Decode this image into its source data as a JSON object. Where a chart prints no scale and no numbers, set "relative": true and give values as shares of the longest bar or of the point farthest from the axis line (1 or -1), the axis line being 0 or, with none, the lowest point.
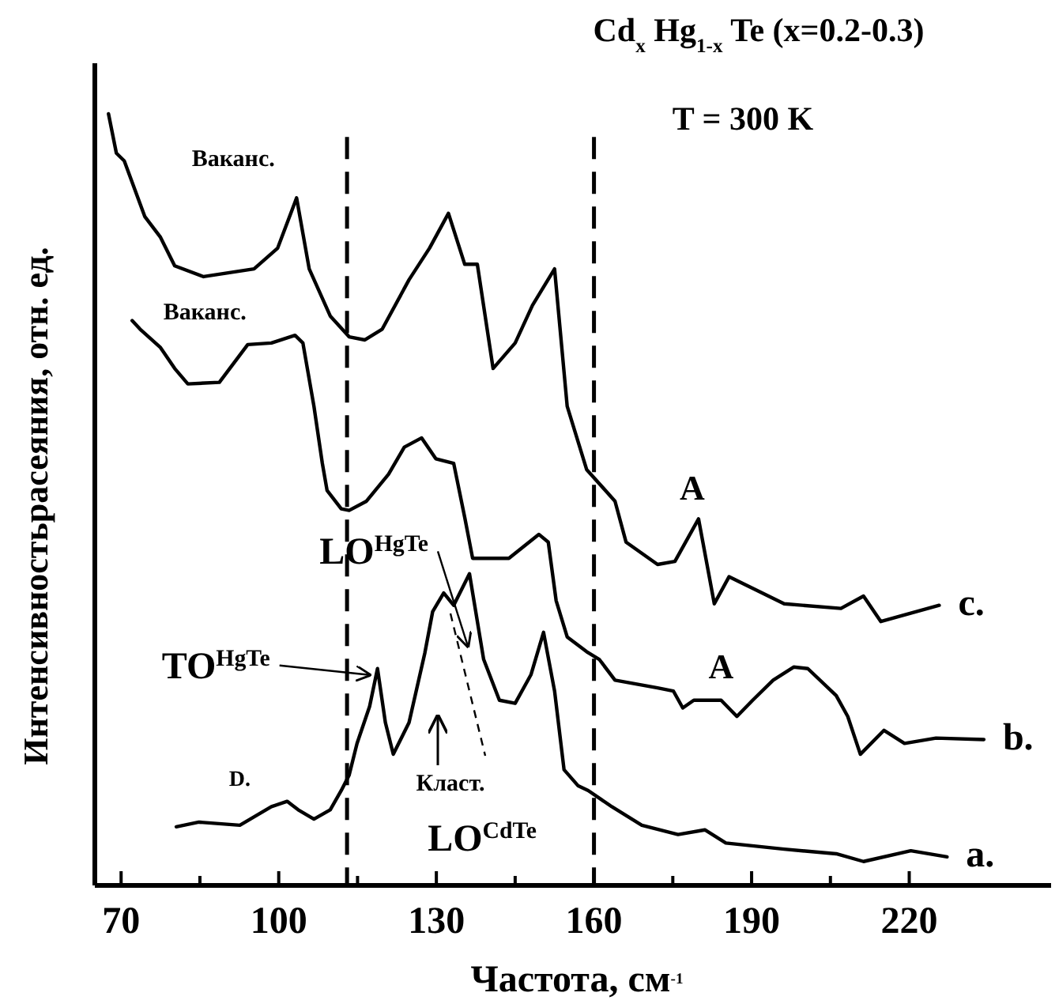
{
  "chart_data": {
    "type": "line",
    "title": "Cd$_{x}$ Hg$_{1-x}$ Te   (x=0.2-0.3)",
    "subtitle": "T = 300 K",
    "xlabel": "Частота, см$^{-1}$",
    "ylabel": "Интенсивностьрасеяния, отн. ед.",
    "relative": true,
    "xlim": [
      65,
      247
    ],
    "xticks": [
      70,
      {
        "value": 85,
        "label": null
      },
      100,
      {
        "value": 115,
        "label": null
      },
      130,
      {
        "value": 145,
        "label": null
      },
      160,
      {
        "value": 175,
        "label": null
      },
      190,
      {
        "value": 205,
        "label": null
      },
      220
    ],
    "grid": false,
    "marker": "none",
    "line_style": "solid",
    "ref_lines": [
      {
        "axis": "x",
        "value": 113,
        "color": "#000000",
        "line_style": "dashed"
      },
      {
        "axis": "x",
        "value": 160,
        "color": "#000000",
        "line_style": "dashed"
      }
    ],
    "series": [
      {
        "name": "a.",
        "color": "#000000",
        "x": [
          80.5,
          84.8,
          92.6,
          98.6,
          101.6,
          103.7,
          106.7,
          109.8,
          111.9,
          113.4,
          114.9,
          117.3,
          118.8,
          120.3,
          121.8,
          124.8,
          127.8,
          129.3,
          131.4,
          133.3,
          136.3,
          139,
          142,
          145,
          148,
          150.4,
          152.5,
          154.3,
          157,
          158.9,
          163.4,
          169.1,
          176,
          181.1,
          185.1,
          196.2,
          206.1,
          211.3,
          220.3,
          227.2
        ],
        "values": [
          0.076,
          0.082,
          0.078,
          0.102,
          0.109,
          0.098,
          0.086,
          0.098,
          0.123,
          0.143,
          0.184,
          0.232,
          0.281,
          0.211,
          0.17,
          0.211,
          0.301,
          0.355,
          0.379,
          0.363,
          0.404,
          0.293,
          0.24,
          0.236,
          0.273,
          0.328,
          0.252,
          0.15,
          0.129,
          0.123,
          0.102,
          0.078,
          0.066,
          0.072,
          0.055,
          0.047,
          0.041,
          0.031,
          0.045,
          0.037
        ]
      },
      {
        "name": "b.",
        "color": "#000000",
        "x": [
          72.1,
          73.6,
          77.5,
          80.2,
          82.7,
          88.7,
          94.1,
          98.6,
          103.1,
          104.6,
          106.7,
          108.3,
          109.2,
          111.9,
          113.4,
          116.7,
          120.9,
          123.9,
          127.2,
          129.9,
          133.3,
          135.4,
          136.9,
          143.8,
          149.5,
          151.3,
          152.8,
          154.9,
          158.6,
          161,
          164,
          172.1,
          175.1,
          176.9,
          179,
          184.2,
          187.2,
          190.2,
          194.1,
          198,
          200.7,
          206.1,
          208.3,
          210.7,
          215.2,
          219.1,
          225.1,
          234.2
        ],
        "values": [
          0.732,
          0.721,
          0.697,
          0.67,
          0.65,
          0.652,
          0.701,
          0.703,
          0.713,
          0.703,
          0.621,
          0.547,
          0.512,
          0.488,
          0.486,
          0.498,
          0.533,
          0.568,
          0.58,
          0.553,
          0.547,
          0.477,
          0.424,
          0.424,
          0.455,
          0.445,
          0.369,
          0.322,
          0.303,
          0.293,
          0.266,
          0.256,
          0.252,
          0.23,
          0.24,
          0.24,
          0.219,
          0.24,
          0.266,
          0.283,
          0.281,
          0.246,
          0.219,
          0.17,
          0.201,
          0.184,
          0.191,
          0.189
        ]
      },
      {
        "name": "c.",
        "color": "#000000",
        "x": [
          67.6,
          69.1,
          70.6,
          74.5,
          77.5,
          80.2,
          85.7,
          95.3,
          99.8,
          103.4,
          105.8,
          109.8,
          113.4,
          116.4,
          119.7,
          124.8,
          128.7,
          132.3,
          135.4,
          137.8,
          140.8,
          145,
          148.3,
          152.5,
          154.9,
          158.6,
          164,
          166.1,
          172.1,
          175.4,
          179.9,
          182.9,
          185.7,
          196.2,
          207,
          211.3,
          214.6,
          225.7
        ],
        "values": [
          1,
          0.949,
          0.939,
          0.867,
          0.84,
          0.803,
          0.789,
          0.799,
          0.826,
          0.891,
          0.799,
          0.738,
          0.711,
          0.707,
          0.721,
          0.785,
          0.826,
          0.871,
          0.805,
          0.805,
          0.67,
          0.703,
          0.752,
          0.799,
          0.621,
          0.539,
          0.498,
          0.445,
          0.416,
          0.42,
          0.475,
          0.365,
          0.4,
          0.365,
          0.359,
          0.375,
          0.342,
          0.363
        ]
      }
    ],
    "annotations": [
      {
        "text": "Ваканс.",
        "x": 103.4,
        "y": 0.891
      },
      {
        "text": "Ваканс.",
        "x": 104.6,
        "y": 0.713
      },
      {
        "text": "A",
        "x": 179.9,
        "y": 0.475
      },
      {
        "text": "A",
        "x": 184.2,
        "y": 0.24
      },
      {
        "text": "D.",
        "x": 101.6,
        "y": 0.109
      },
      {
        "text": "TO$^{HgTe}$",
        "x": 118.8,
        "y": 0.281
      },
      {
        "text": "LO$^{HgTe}$",
        "x": 137.5,
        "y": 0.31
      },
      "Класт.",
      "LO$^{CdTe}$"
    ]
  }
}
